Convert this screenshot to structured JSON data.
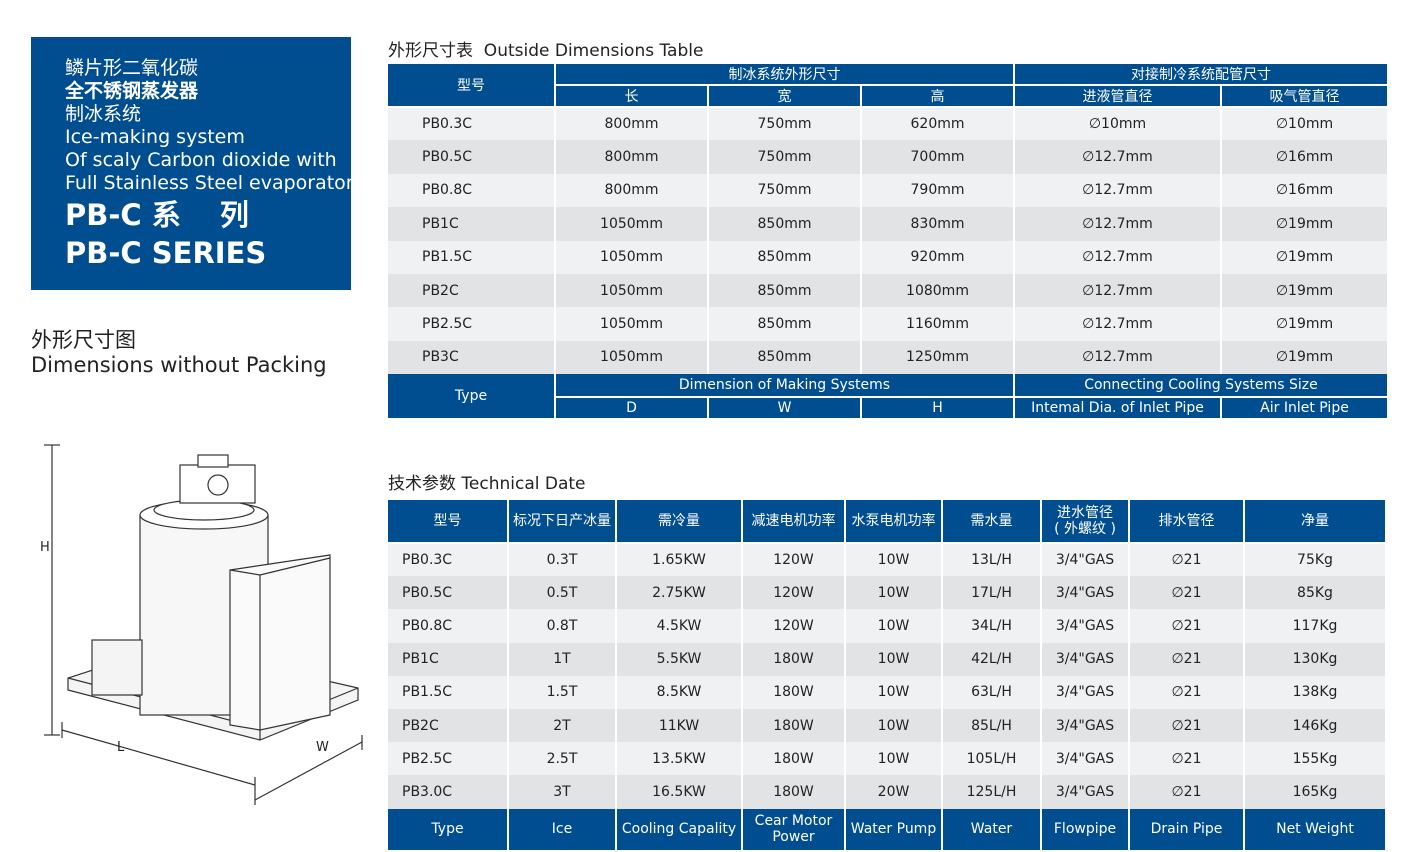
{
  "intro": {
    "lines_cn": [
      "鳞片形二氧化碳",
      "全不锈钢蒸发器",
      "制冰系统"
    ],
    "lines_en": [
      "Ice-making system",
      "Of scaly Carbon dioxide  with",
      "Full Stainless Steel evaporator"
    ],
    "series_cn": "PB-C 系　 列",
    "series_en": "PB-C SERIES"
  },
  "drawing": {
    "title_cn": "外形尺寸图",
    "title_en": "Dimensions without Packing",
    "labels": {
      "h": "H",
      "l": "L",
      "w": "W"
    }
  },
  "colors": {
    "header": "#004e8f",
    "row_light": "#f0f1f2",
    "row_dark": "#e2e3e5"
  },
  "dim_table": {
    "title": "外形尺寸表  Outside Dimensions Table",
    "header": {
      "model": "型号",
      "group1": "制冰系统外形尺寸",
      "group2": "对接制冷系统配管尺寸",
      "cols": [
        "长",
        "宽",
        "高",
        "进液管直径",
        "吸气管直径"
      ]
    },
    "footer": {
      "model": "Type",
      "group1": "Dimension of Making Systems",
      "group2": "Connecting Cooling Systems Size",
      "cols": [
        "D",
        "W",
        "H",
        "Intemal Dia. of Inlet Pipe",
        "Air Inlet Pipe"
      ]
    },
    "rows": [
      [
        "PB0.3C",
        "800mm",
        "750mm",
        "620mm",
        "∅10mm",
        "∅10mm"
      ],
      [
        "PB0.5C",
        "800mm",
        "750mm",
        "700mm",
        "∅12.7mm",
        "∅16mm"
      ],
      [
        "PB0.8C",
        "800mm",
        "750mm",
        "790mm",
        "∅12.7mm",
        "∅16mm"
      ],
      [
        "PB1C",
        "1050mm",
        "850mm",
        "830mm",
        "∅12.7mm",
        "∅19mm"
      ],
      [
        "PB1.5C",
        "1050mm",
        "850mm",
        "920mm",
        "∅12.7mm",
        "∅19mm"
      ],
      [
        "PB2C",
        "1050mm",
        "850mm",
        "1080mm",
        "∅12.7mm",
        "∅19mm"
      ],
      [
        "PB2.5C",
        "1050mm",
        "850mm",
        "1160mm",
        "∅12.7mm",
        "∅19mm"
      ],
      [
        "PB3C",
        "1050mm",
        "850mm",
        "1250mm",
        "∅12.7mm",
        "∅19mm"
      ]
    ]
  },
  "tech_table": {
    "title": "技术参数 Technical Date",
    "header": [
      "型号",
      "标况下日产冰量",
      "需冷量",
      "减速电机功率",
      "水泵电机功率",
      "需水量",
      "进水管径\n( 外螺纹 )",
      "排水管径",
      "净量"
    ],
    "footer": [
      "Type",
      "Ice",
      "Cooling Capality",
      "Cear Motor\nPower",
      "Water Pump",
      "Water",
      "Flowpipe",
      "Drain Pipe",
      "Net Weight"
    ],
    "rows": [
      [
        "PB0.3C",
        "0.3T",
        "1.65KW",
        "120W",
        "10W",
        "13L/H",
        "3/4\"GAS",
        "∅21",
        "75Kg"
      ],
      [
        "PB0.5C",
        "0.5T",
        "2.75KW",
        "120W",
        "10W",
        "17L/H",
        "3/4\"GAS",
        "∅21",
        "85Kg"
      ],
      [
        "PB0.8C",
        "0.8T",
        "4.5KW",
        "120W",
        "10W",
        "34L/H",
        "3/4\"GAS",
        "∅21",
        "117Kg"
      ],
      [
        "PB1C",
        "1T",
        "5.5KW",
        "180W",
        "10W",
        "42L/H",
        "3/4\"GAS",
        "∅21",
        "130Kg"
      ],
      [
        "PB1.5C",
        "1.5T",
        "8.5KW",
        "180W",
        "10W",
        "63L/H",
        "3/4\"GAS",
        "∅21",
        "138Kg"
      ],
      [
        "PB2C",
        "2T",
        "11KW",
        "180W",
        "10W",
        "85L/H",
        "3/4\"GAS",
        "∅21",
        "146Kg"
      ],
      [
        "PB2.5C",
        "2.5T",
        "13.5KW",
        "180W",
        "10W",
        "105L/H",
        "3/4\"GAS",
        "∅21",
        "155Kg"
      ],
      [
        "PB3.0C",
        "3T",
        "16.5KW",
        "180W",
        "20W",
        "125L/H",
        "3/4\"GAS",
        "∅21",
        "165Kg"
      ]
    ]
  }
}
